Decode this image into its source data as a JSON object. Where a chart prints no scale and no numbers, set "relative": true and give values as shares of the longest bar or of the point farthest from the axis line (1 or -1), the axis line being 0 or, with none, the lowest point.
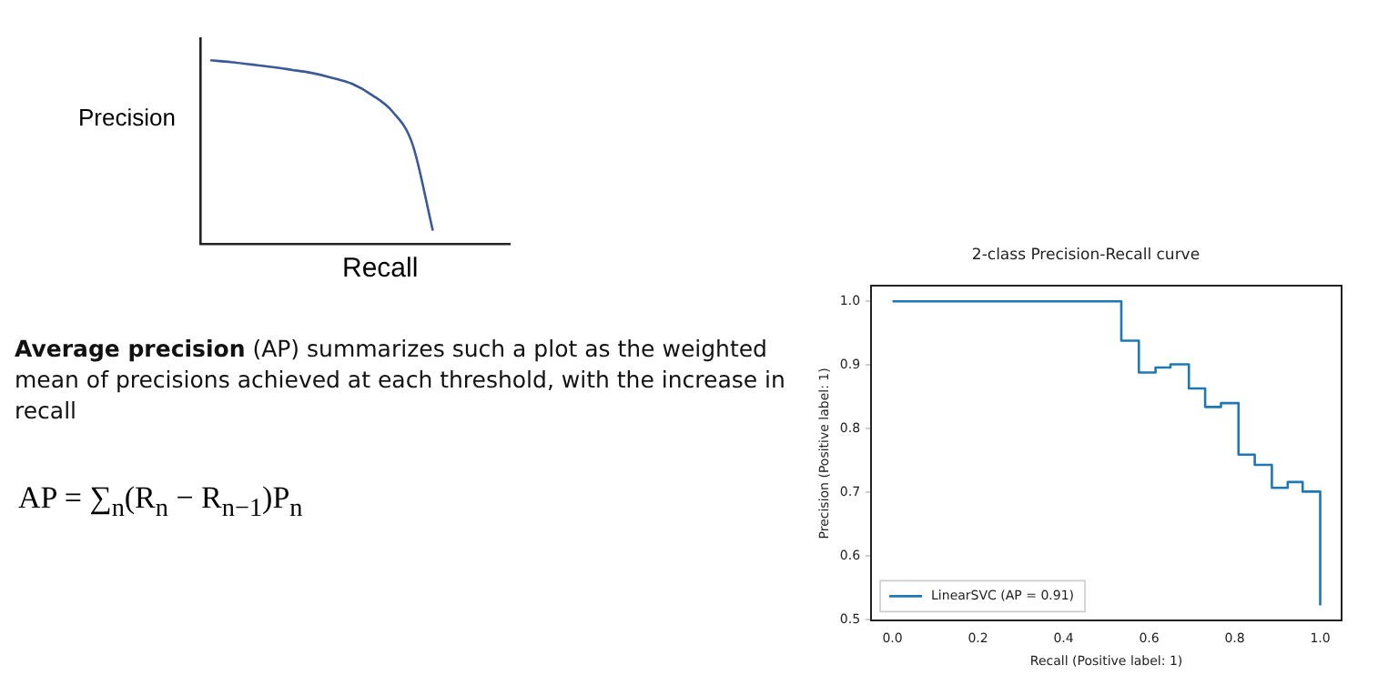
{
  "chart_data": [
    {
      "type": "line",
      "relative": true,
      "xlabel": "Recall",
      "ylabel": "Precision",
      "color": "#3b5998",
      "marker": "none",
      "categories": [
        null,
        null,
        null,
        null,
        null,
        null,
        null,
        null,
        null,
        null,
        null,
        null
      ],
      "values": [
        1,
        0.99,
        0.977,
        0.964,
        0.948,
        0.931,
        0.905,
        0.872,
        0.81,
        0.721,
        0.541,
        0.072
      ]
    },
    {
      "type": "other",
      "annotations": [
        "Average precision",
        "(AP) summarizes such a plot as the weighted mean of precisions achieved at each threshold, with the increase in recall",
        "AP = ∑$_{n}$(R$_{n}$ − R$_{n−1}$)P$_{n}$"
      ]
    },
    {
      "type": "step",
      "title": "2-class Precision-Recall curve",
      "xlabel": "Recall (Positive label: 1)",
      "ylabel": "Precision (Positive label: 1)",
      "legend": "bottom left",
      "marker": "none",
      "grid": false,
      "x": [
        0,
        0.535,
        0.576,
        0.615,
        0.65,
        0.693,
        0.731,
        0.768,
        0.809,
        0.847,
        0.887,
        0.924,
        0.959,
        1.0
      ],
      "series": [
        {
          "name": "LinearSVC (AP = 0.91)",
          "color": "#1f77b4",
          "values": [
            1.0,
            0.938,
            0.888,
            0.896,
            0.901,
            0.863,
            0.834,
            0.84,
            0.759,
            0.743,
            0.707,
            0.716,
            0.701,
            0.522
          ]
        }
      ],
      "xlim": [
        -0.05,
        1.05
      ],
      "ylim": [
        0.498,
        1.024
      ],
      "xticks": [
        {
          "value": 0,
          "label": "0.0"
        },
        0.2,
        0.4,
        0.6,
        0.8,
        {
          "value": 1,
          "label": "1.0"
        }
      ],
      "yticks": [
        0.5,
        0.6,
        0.7,
        0.8,
        0.9,
        {
          "value": 1,
          "label": "1.0"
        }
      ]
    }
  ]
}
